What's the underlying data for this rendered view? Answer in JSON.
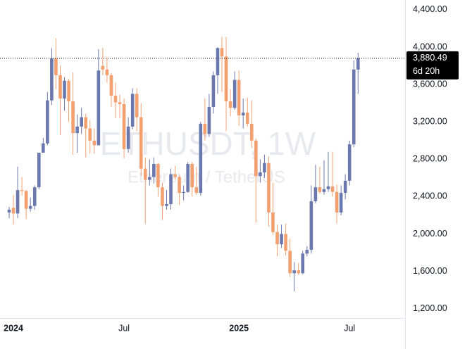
{
  "chart_data": {
    "type": "candlestick",
    "watermark": "ETHUSDT, 1W",
    "watermark_subtitle": "Ethereum / TetherUS",
    "categories": [
      null,
      "2024",
      null,
      null,
      null,
      null,
      null,
      null,
      null,
      null,
      null,
      null,
      null,
      null,
      null,
      null,
      null,
      null,
      null,
      null,
      null,
      null,
      null,
      null,
      null,
      null,
      null,
      "Jul",
      null,
      null,
      null,
      null,
      null,
      null,
      null,
      null,
      null,
      null,
      null,
      null,
      null,
      null,
      null,
      null,
      null,
      null,
      null,
      null,
      null,
      null,
      null,
      null,
      null,
      null,
      "2025",
      null,
      null,
      null,
      null,
      null,
      null,
      null,
      null,
      null,
      null,
      null,
      null,
      null,
      null,
      null,
      null,
      null,
      null,
      null,
      null,
      null,
      null,
      null,
      null,
      null,
      "Jul",
      null,
      null
    ],
    "open": [
      2230,
      2280,
      2220,
      2470,
      2460,
      2270,
      2300,
      2500,
      2870,
      2970,
      3430,
      3880,
      3700,
      3450,
      3640,
      3420,
      3080,
      3150,
      3250,
      3130,
      3000,
      2950,
      3800,
      3760,
      3700,
      3480,
      3410,
      3390,
      2910,
      3150,
      3500,
      3250,
      2700,
      2580,
      2610,
      2750,
      2500,
      2300,
      2320,
      2640,
      2610,
      2440,
      2450,
      2750,
      2500,
      2440,
      3180,
      3070,
      3360,
      3700,
      3990,
      3900,
      3420,
      3350,
      3650,
      3270,
      3300,
      3180,
      3000,
      2620,
      2660,
      2760,
      2230,
      2020,
      1890,
      2000,
      1820,
      1580,
      1610,
      1580,
      1790,
      1830,
      2350,
      2500,
      2450,
      2480,
      2510,
      2450,
      2230,
      2440,
      2570,
      2960,
      3760
    ],
    "high": [
      2290,
      2420,
      2720,
      2610,
      2470,
      2390,
      2520,
      2870,
      3030,
      3520,
      3990,
      4095,
      3800,
      3680,
      3660,
      3730,
      3280,
      3350,
      3290,
      3220,
      3130,
      3980,
      3990,
      3890,
      3720,
      3620,
      3490,
      3450,
      3250,
      3560,
      3560,
      3400,
      2820,
      2800,
      2820,
      2760,
      2550,
      2470,
      2700,
      2730,
      2630,
      2520,
      2770,
      2770,
      2720,
      3200,
      3450,
      3500,
      3740,
      4000,
      4110,
      4110,
      3550,
      3740,
      3750,
      3450,
      3460,
      3430,
      3020,
      2800,
      2850,
      2830,
      2550,
      2100,
      2100,
      2110,
      1950,
      1700,
      1690,
      1820,
      1870,
      2520,
      2740,
      2720,
      2790,
      2880,
      2880,
      2530,
      2520,
      2640,
      3000,
      3860,
      3940
    ],
    "low": [
      2170,
      2100,
      2170,
      2410,
      2160,
      2240,
      2260,
      2480,
      2870,
      2950,
      3380,
      3550,
      3060,
      3320,
      3200,
      2850,
      2870,
      3070,
      2820,
      2860,
      2860,
      2950,
      3700,
      3620,
      3360,
      3240,
      3240,
      2810,
      2870,
      3120,
      3100,
      2620,
      2110,
      2520,
      2540,
      2400,
      2150,
      2260,
      2260,
      2580,
      2310,
      2360,
      2440,
      2400,
      2420,
      2410,
      3000,
      3040,
      3290,
      3500,
      3520,
      3100,
      3260,
      3330,
      3160,
      3130,
      3150,
      2920,
      2120,
      2550,
      2600,
      2080,
      1990,
      1760,
      1850,
      1770,
      1540,
      1385,
      1560,
      1570,
      1760,
      1790,
      2330,
      2430,
      2420,
      2450,
      2400,
      2110,
      2200,
      2370,
      2520,
      2930,
      3500
    ],
    "close": [
      2260,
      2220,
      2470,
      2460,
      2270,
      2300,
      2500,
      2870,
      2970,
      3430,
      3880,
      3700,
      3450,
      3640,
      3420,
      3080,
      3150,
      3250,
      3130,
      3000,
      2950,
      3750,
      3760,
      3700,
      3480,
      3410,
      3390,
      2910,
      3150,
      3500,
      3250,
      2700,
      2580,
      2610,
      2750,
      2500,
      2300,
      2320,
      2640,
      2610,
      2440,
      2450,
      2750,
      2500,
      2440,
      3180,
      3070,
      3360,
      3700,
      3990,
      3900,
      3420,
      3350,
      3650,
      3270,
      3300,
      3180,
      3000,
      2620,
      2660,
      2760,
      2230,
      2020,
      1890,
      2000,
      1820,
      1580,
      1610,
      1580,
      1790,
      1830,
      2350,
      2500,
      2450,
      2480,
      2510,
      2450,
      2230,
      2440,
      2570,
      2960,
      3760,
      3880.49
    ],
    "up_color": "#6b78ad",
    "down_color": "#f2a070",
    "ylim": [
      1100,
      4505
    ],
    "yticks": [
      {
        "value": 1200,
        "label": "1,200.00"
      },
      {
        "value": 1600,
        "label": "1,600.00"
      },
      {
        "value": 2000,
        "label": "2,000.00"
      },
      {
        "value": 2400,
        "label": "2,400.00"
      },
      {
        "value": 2800,
        "label": "2,800.00"
      },
      {
        "value": 3200,
        "label": "3,200.00"
      },
      {
        "value": 3600,
        "label": "3,600.00"
      },
      {
        "value": 4000,
        "label": "4,000.00"
      },
      {
        "value": 4400,
        "label": "4,400.00"
      }
    ],
    "grid": false,
    "price_line": {
      "value": 3880.49,
      "label": "3,880.49"
    },
    "countdown": "6d 20h"
  }
}
